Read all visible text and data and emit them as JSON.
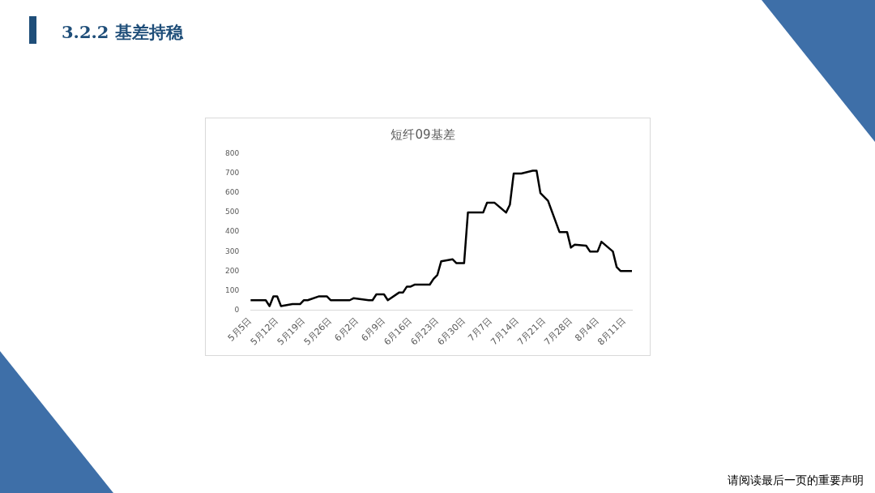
{
  "chart_data": {
    "type": "line",
    "title": "短纤09基差",
    "subtitle": "3.2.2 基差持稳",
    "annotations": [
      "请阅读最后一页的重要声明"
    ],
    "x": [
      "--05-05",
      "--05-09",
      "--05-10",
      "--05-11",
      "--05-12",
      "--05-13",
      "--05-16",
      "--05-18",
      "--05-19",
      "--05-20",
      "--05-23",
      "--05-25",
      "--05-26",
      "--05-31",
      "--06-01",
      "--06-05",
      "--06-06",
      "--06-07",
      "--06-09",
      "--06-10",
      "--06-13",
      "--06-14",
      "--06-15",
      "--06-16",
      "--06-17",
      "--06-21",
      "--06-22",
      "--06-23",
      "--06-24",
      "--06-27",
      "--06-28",
      "--06-30",
      "--07-01",
      "--07-05",
      "--07-06",
      "--07-08",
      "--07-11",
      "--07-12",
      "--07-13",
      "--07-15",
      "--07-18",
      "--07-19",
      "--07-20",
      "--07-22",
      "--07-25",
      "--07-27",
      "--07-28",
      "--07-29",
      "--08-01",
      "--08-02",
      "--08-04",
      "--08-05",
      "--08-08",
      "--08-09",
      "--08-10",
      "--08-13"
    ],
    "series": [
      {
        "color": "#000000",
        "values": [
          50,
          50,
          20,
          70,
          70,
          20,
          30,
          30,
          50,
          50,
          70,
          70,
          50,
          50,
          60,
          50,
          50,
          80,
          80,
          50,
          90,
          90,
          120,
          120,
          130,
          130,
          160,
          180,
          250,
          260,
          240,
          240,
          500,
          500,
          550,
          550,
          500,
          540,
          700,
          700,
          715,
          715,
          600,
          560,
          400,
          400,
          320,
          335,
          330,
          300,
          300,
          350,
          300,
          220,
          200,
          200
        ]
      }
    ],
    "xlim": [
      "--05-05",
      "--08-13"
    ],
    "xticks": [
      {
        "value": "--05-05",
        "label": "5月5日"
      },
      {
        "value": "--05-12",
        "label": "5月12日"
      },
      {
        "value": "--05-19",
        "label": "5月19日"
      },
      {
        "value": "--05-26",
        "label": "5月26日"
      },
      {
        "value": "--06-02",
        "label": "6月2日"
      },
      {
        "value": "--06-09",
        "label": "6月9日"
      },
      {
        "value": "--06-16",
        "label": "6月16日"
      },
      {
        "value": "--06-23",
        "label": "6月23日"
      },
      {
        "value": "--06-30",
        "label": "6月30日"
      },
      {
        "value": "--07-07",
        "label": "7月7日"
      },
      {
        "value": "--07-14",
        "label": "7月14日"
      },
      {
        "value": "--07-21",
        "label": "7月21日"
      },
      {
        "value": "--07-28",
        "label": "7月28日"
      },
      {
        "value": "--08-04",
        "label": "8月4日"
      },
      {
        "value": "--08-11",
        "label": "8月11日"
      }
    ],
    "ylim": [
      0,
      800
    ],
    "yticks": [
      0,
      100,
      200,
      300,
      400,
      500,
      600,
      700,
      800
    ],
    "grid": false,
    "legend": false,
    "marker": "none",
    "line_style": "solid"
  }
}
